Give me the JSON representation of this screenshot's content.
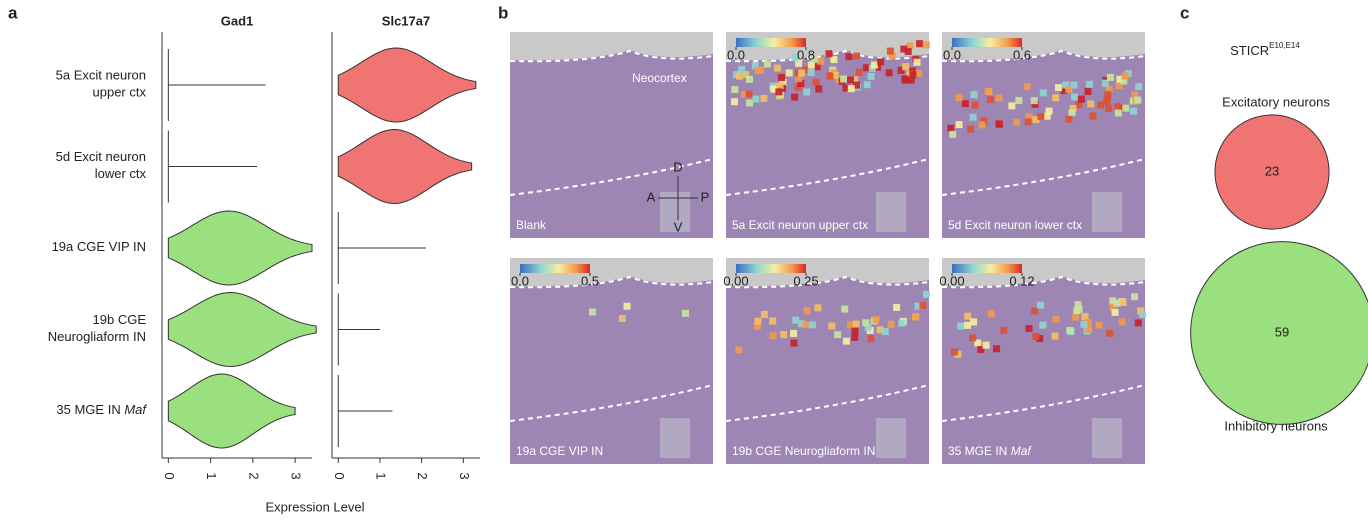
{
  "panel_a": {
    "label": "a",
    "genes": [
      "Gad1",
      "Slc17a7"
    ],
    "rows": [
      {
        "label": [
          "5a Excit neuron",
          "upper ctx"
        ],
        "cells": [
          {
            "max": 2.3
          },
          {
            "max": 3.3,
            "color": "#f07472"
          }
        ]
      },
      {
        "label": [
          "5d Excit neuron",
          "lower ctx"
        ],
        "cells": [
          {
            "max": 2.1
          },
          {
            "max": 3.2,
            "color": "#f07472"
          }
        ]
      },
      {
        "label": [
          "19a CGE VIP IN"
        ],
        "cells": [
          {
            "max": 3.4,
            "color": "#9be07f"
          },
          {
            "max": 2.1
          }
        ]
      },
      {
        "label": [
          "19b CGE",
          "Neurogliaform IN"
        ],
        "cells": [
          {
            "max": 3.5,
            "color": "#9be07f"
          },
          {
            "max": 1.0
          }
        ]
      },
      {
        "label": [
          "35 MGE IN"
        ],
        "italic": "Maf",
        "cells": [
          {
            "max": 3.0,
            "color": "#9be07f"
          },
          {
            "max": 1.3
          }
        ]
      }
    ],
    "xlim": [
      -0.15,
      3.4
    ],
    "xticks": [
      0,
      1,
      2,
      3
    ],
    "xlabel": "Expression Level"
  },
  "panel_b": {
    "label": "b",
    "annotation": "Neocortex",
    "compass": [
      "D",
      "A",
      "P",
      "V"
    ],
    "tiles": [
      {
        "label": "Blank"
      },
      {
        "label": "5a Excit neuron upper ctx",
        "colorbar": [
          {
            "value": 0,
            "label": "0.0"
          },
          0.8
        ]
      },
      {
        "label": "5d Excit neuron lower ctx",
        "colorbar": [
          {
            "value": 0,
            "label": "0.0"
          },
          0.6
        ]
      },
      {
        "label": "19a CGE VIP IN",
        "colorbar": [
          {
            "value": 0,
            "label": "0.0"
          },
          0.5
        ]
      },
      {
        "label": "19b CGE Neurogliaform IN",
        "colorbar": [
          {
            "value": 0,
            "label": "0.00"
          },
          0.25
        ]
      },
      {
        "label": "35 MGE IN",
        "italic": "Maf",
        "colorbar": [
          {
            "value": 0,
            "label": "0.00"
          },
          0.12
        ]
      }
    ]
  },
  "panel_c": {
    "label": "c",
    "title": "STICR",
    "superscript": "E10,E14",
    "circles": [
      {
        "name": "Excitatory neurons",
        "value": 23,
        "color": "#f07472"
      },
      {
        "name": "Inhibitory neurons",
        "value": 59,
        "color": "#9be07f"
      }
    ]
  }
}
